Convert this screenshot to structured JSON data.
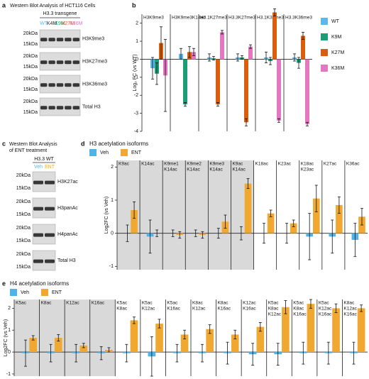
{
  "blots": [
    {
      "label": "a",
      "title": [
        "Western Blot Analysis of HCT116 Cells"
      ],
      "header": "H3.3 transgene",
      "lanes": [
        {
          "name": "WT",
          "color": "#5bb8e8"
        },
        {
          "name": "K4M",
          "color": "#222222"
        },
        {
          "name": "K9M",
          "color": "#1a9e77"
        },
        {
          "name": "K27M",
          "color": "#d95f0e"
        },
        {
          "name": "K36M",
          "color": "#e377c2"
        }
      ],
      "rows": [
        {
          "name": "H3K9me3",
          "markers": [
            "20kDa",
            "15kDa"
          ]
        },
        {
          "name": "H3K27me3",
          "markers": [
            "20kDa",
            "15kDa"
          ]
        },
        {
          "name": "H3K36me3",
          "markers": [
            "20kDa",
            "15kDa"
          ]
        },
        {
          "name": "Total H3",
          "markers": [
            "20kDa",
            "15kDa"
          ]
        }
      ]
    },
    {
      "label": "c",
      "title": [
        "Western Blot Analysis",
        "of ENT treatment"
      ],
      "header": "H3.3 WT",
      "lanes": [
        {
          "name": "Veh",
          "color": "#5bb8e8"
        },
        {
          "name": "ENT",
          "color": "#f0a830"
        }
      ],
      "rows": [
        {
          "name": "H3K27ac",
          "markers": [
            "20kDa",
            "15kDa"
          ]
        },
        {
          "name": "H3panAc",
          "markers": [
            "20kDa",
            "15kDa"
          ]
        },
        {
          "name": "H4panAc",
          "markers": [
            "20kDa",
            "15kDa"
          ]
        },
        {
          "name": "Total H3",
          "markers": [
            "20kDa",
            "15kDa"
          ]
        }
      ]
    }
  ],
  "chart_data": [
    {
      "type": "bar",
      "label": "b",
      "y_label": "Log₂ FC (vs WT)",
      "legend": "right",
      "categories": [
        [
          "H3K9me3"
        ],
        [
          "H3K9me3K14ac"
        ],
        [
          "H3.1K27me3"
        ],
        [
          "H3.3K27me3"
        ],
        [
          "H3.1K36me3"
        ],
        [
          "H3.3K36me3"
        ]
      ],
      "shaded": [
        false,
        false,
        false,
        false,
        false,
        false
      ],
      "ylim": [
        -4,
        2.5
      ],
      "yticks": [
        -4,
        -3,
        -2,
        -1,
        0,
        1,
        2
      ],
      "series": [
        {
          "name": "WT",
          "color": "#5bb8e8",
          "values": [
            -0.5,
            0.3,
            0.1,
            0.1,
            0.1,
            0.1
          ],
          "errors": [
            0.6,
            0.3,
            0.2,
            0.2,
            0.3,
            0.2
          ]
        },
        {
          "name": "K9M",
          "color": "#1a9e77",
          "values": [
            -0.8,
            -2.5,
            0.05,
            0.1,
            -0.1,
            -0.2
          ],
          "errors": [
            0.6,
            0.1,
            0.1,
            0.1,
            0.2,
            0.3
          ]
        },
        {
          "name": "K27M",
          "color": "#d95f0e",
          "values": [
            0.9,
            0.4,
            -2.5,
            -3.5,
            2.6,
            1.3
          ],
          "errors": [
            0.9,
            0.3,
            0.1,
            0.2,
            0.2,
            0.2
          ]
        },
        {
          "name": "K36M",
          "color": "#e377c2",
          "values": [
            -0.9,
            0.4,
            1.5,
            0.7,
            -3.4,
            -3.6
          ],
          "errors": [
            2.0,
            0.2,
            0.1,
            0.1,
            0.1,
            0.1
          ]
        }
      ]
    },
    {
      "type": "bar",
      "label": "d",
      "title": "H3 acetylation isoforms",
      "y_label": "Log2FC (vs Veh)",
      "legend": "top",
      "categories": [
        [
          "K9ac"
        ],
        [
          "K14ac"
        ],
        [
          "K9me1",
          "K14ac"
        ],
        [
          "K9me2",
          "K14ac"
        ],
        [
          "K9me3",
          "K14ac"
        ],
        [
          "K9ac",
          "K14ac"
        ],
        [
          "K18ac"
        ],
        [
          "K23ac"
        ],
        [
          "K18ac",
          "K23ac"
        ],
        [
          "K27ac"
        ],
        [
          "K36ac"
        ]
      ],
      "shaded": [
        true,
        true,
        true,
        true,
        true,
        true,
        false,
        false,
        false,
        false,
        false
      ],
      "ylim": [
        -1.1,
        2.2
      ],
      "yticks": [
        -1,
        0,
        1,
        2
      ],
      "series": [
        {
          "name": "Veh",
          "color": "#4fb3e8",
          "values": [
            0.0,
            -0.1,
            0.0,
            0.0,
            0.0,
            0.0,
            0.0,
            0.0,
            -0.1,
            -0.1,
            -0.2
          ],
          "errors": [
            0.25,
            0.5,
            0.1,
            0.1,
            0.15,
            0.2,
            0.3,
            0.3,
            0.7,
            0.5,
            0.5
          ]
        },
        {
          "name": "ENT",
          "color": "#f0a830",
          "values": [
            0.7,
            0.0,
            -0.05,
            -0.05,
            0.35,
            1.5,
            0.6,
            0.3,
            1.05,
            0.85,
            0.5
          ],
          "errors": [
            0.25,
            0.1,
            0.1,
            0.1,
            0.2,
            0.15,
            0.1,
            0.1,
            0.4,
            0.25,
            0.25
          ]
        }
      ]
    },
    {
      "type": "bar",
      "label": "e",
      "title": "H4 acetylation isoforms",
      "y_label": "Log2FC (vs Veh)",
      "legend": "top",
      "categories": [
        [
          "K5ac"
        ],
        [
          "K8ac"
        ],
        [
          "K12ac"
        ],
        [
          "K16ac"
        ],
        [
          "K5ac",
          "K8ac"
        ],
        [
          "K5ac",
          "K12ac"
        ],
        [
          "K5ac",
          "K16ac"
        ],
        [
          "K8ac",
          "K12ac"
        ],
        [
          "K8ac",
          "K16ac"
        ],
        [
          "K12ac",
          "K16ac"
        ],
        [
          "K5ac",
          "K8ac",
          "K12ac"
        ],
        [
          "K5ac",
          "K8ac",
          "K16ac"
        ],
        [
          "K5ac",
          "K12ac",
          "K16ac"
        ],
        [
          "K8ac",
          "K12ac",
          "K16ac"
        ]
      ],
      "shaded": [
        true,
        true,
        true,
        true,
        false,
        false,
        false,
        false,
        false,
        false,
        false,
        false,
        false,
        false
      ],
      "ylim": [
        -1.1,
        2.4
      ],
      "yticks": [
        -1,
        0,
        1,
        2
      ],
      "series": [
        {
          "name": "Veh",
          "color": "#4fb3e8",
          "values": [
            -0.05,
            -0.05,
            -0.05,
            -0.05,
            -0.05,
            -0.2,
            -0.05,
            -0.05,
            -0.05,
            -0.1,
            -0.1,
            -0.05,
            -0.05,
            -0.05
          ],
          "errors": [
            0.6,
            0.4,
            0.4,
            0.3,
            0.4,
            0.9,
            0.4,
            0.4,
            0.5,
            0.5,
            0.5,
            0.5,
            0.5,
            0.5
          ]
        },
        {
          "name": "ENT",
          "color": "#f0a830",
          "values": [
            0.65,
            0.65,
            0.3,
            0.1,
            1.45,
            1.3,
            0.8,
            1.05,
            0.8,
            1.15,
            2.05,
            2.2,
            2.0,
            2.0
          ],
          "errors": [
            0.1,
            0.15,
            0.1,
            0.1,
            0.15,
            0.2,
            0.2,
            0.2,
            0.2,
            0.2,
            0.3,
            0.2,
            0.2,
            0.15
          ]
        }
      ]
    }
  ]
}
